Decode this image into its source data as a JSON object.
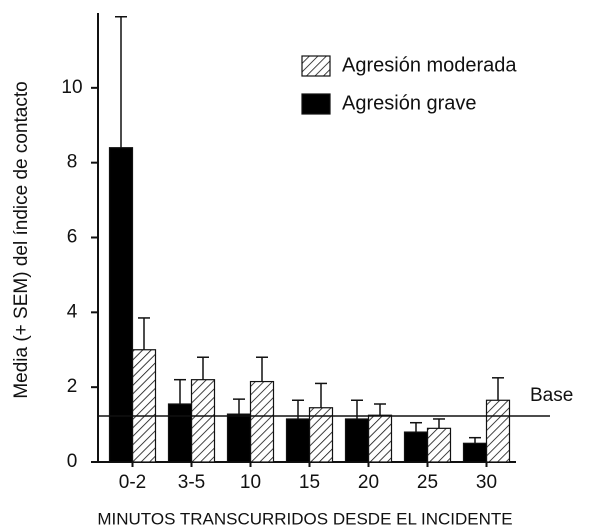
{
  "chart_data": {
    "type": "bar",
    "y_label": "Media (+ SEM) del índice de contacto",
    "x_label": "MINUTOS TRANSCURRIDOS DESDE EL INCIDENTE",
    "categories": [
      "0-2",
      "3-5",
      "10",
      "15",
      "20",
      "25",
      "30"
    ],
    "series": [
      {
        "name": "Agresión moderada",
        "color": "hatched",
        "values": [
          3.0,
          2.2,
          2.15,
          1.45,
          1.25,
          0.9,
          1.65
        ],
        "errors": [
          0.85,
          0.6,
          0.65,
          0.65,
          0.3,
          0.25,
          0.6
        ]
      },
      {
        "name": "Agresión grave",
        "color": "#000000",
        "values": [
          8.4,
          1.55,
          1.28,
          1.15,
          1.15,
          0.8,
          0.5
        ],
        "errors": [
          3.5,
          0.65,
          0.4,
          0.5,
          0.5,
          0.25,
          0.15
        ]
      }
    ],
    "ylim": [
      0,
      12
    ],
    "yticks": [
      0,
      2,
      4,
      6,
      8,
      10
    ],
    "baseline": {
      "value": 1.23,
      "label": "Base"
    },
    "legend": "upper right",
    "grid": false
  }
}
